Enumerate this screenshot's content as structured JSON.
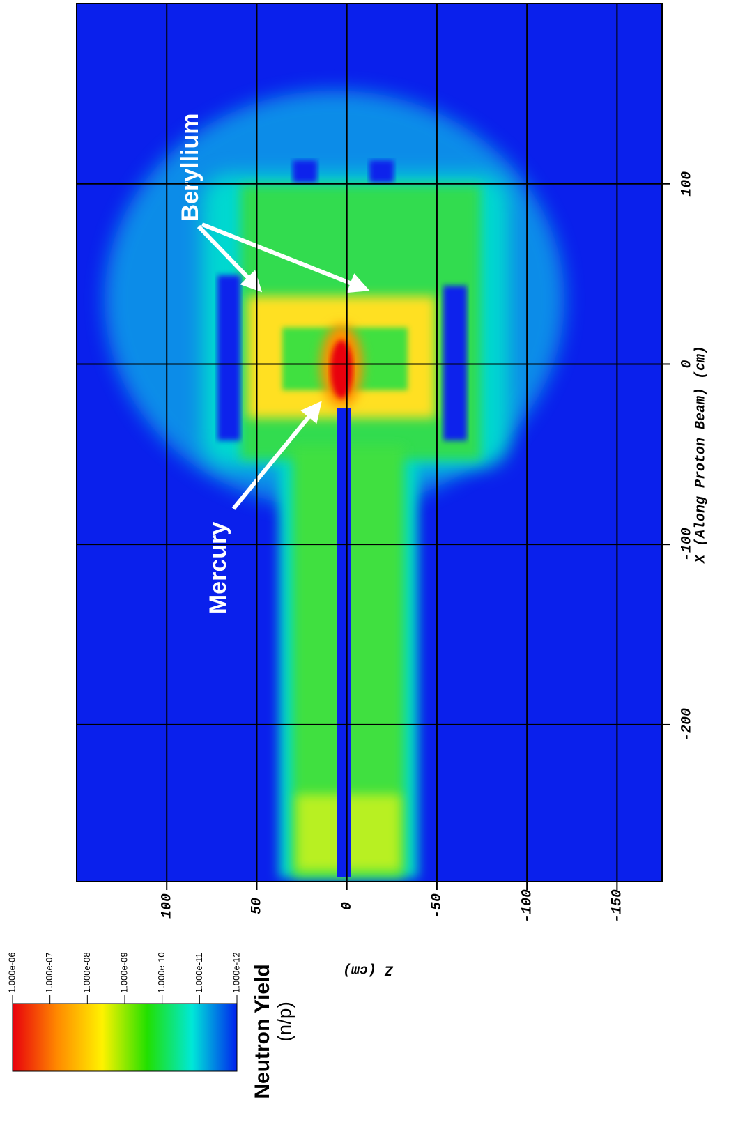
{
  "chart_data": {
    "type": "heatmap",
    "x_label": "X (Along Proton Beam) (cm)",
    "y_label": "Z (cm)",
    "xlim": [
      -287,
      200
    ],
    "xticks": [
      -200,
      -100,
      0,
      100
    ],
    "ylim": [
      -175,
      150
    ],
    "yticks": [
      -150,
      -100,
      -50,
      0,
      50,
      100
    ],
    "grid": true,
    "annotations": [
      "Beryllium",
      "Mercury"
    ],
    "colorbar": {
      "title": "Neutron Yield",
      "unit": "(n/p)",
      "log": true,
      "lim": [
        1e-12,
        1e-06
      ],
      "colors": [
        "#e8000c",
        "#ff8a00",
        "#fff200",
        "#22e000",
        "#00e8d8",
        "#0022ee"
      ],
      "ticks": [
        {
          "value": 1e-06,
          "label": "1.000e-06"
        },
        {
          "value": 1e-07,
          "label": "1.000e-07"
        },
        {
          "value": 1e-08,
          "label": "1.000e-08"
        },
        {
          "value": 1e-09,
          "label": "1.000e-09"
        },
        {
          "value": 1e-10,
          "label": "1.000e-10"
        },
        {
          "value": 1e-11,
          "label": "1.000e-11"
        },
        {
          "value": 1e-12,
          "label": "1.000e-12"
        }
      ]
    }
  }
}
